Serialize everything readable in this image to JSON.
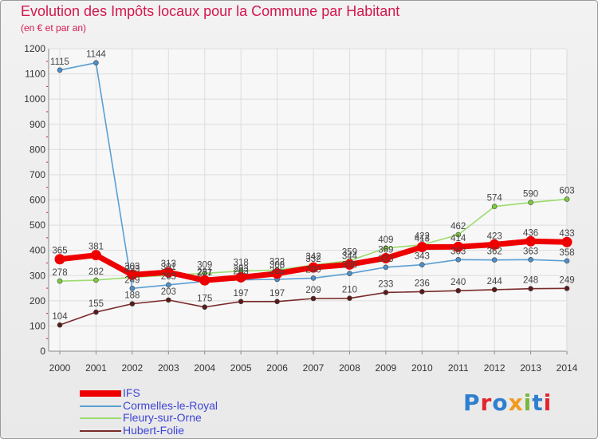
{
  "header": {
    "title": "Evolution des Impôts locaux pour la Commune par Habitant",
    "subtitle": "(en € et par an)"
  },
  "logo": {
    "text": "Proxiti",
    "colors": [
      "#2f7fcf",
      "#e1252f",
      "#2f7fcf",
      "#f39a1e",
      "#78b83a",
      "#2f7fcf",
      "#e1252f"
    ]
  },
  "chart_data": {
    "type": "line",
    "title": "Evolution des Impôts locaux pour la Commune par Habitant",
    "subtitle": "(en € et par an)",
    "xlabel": "",
    "ylabel": "",
    "ylim": [
      0,
      1200
    ],
    "yticks": [
      0,
      100,
      200,
      300,
      400,
      500,
      600,
      700,
      800,
      900,
      1000,
      1100,
      1200
    ],
    "grid": true,
    "legend_position": "bottom-left",
    "categories": [
      "2000",
      "2001",
      "2002",
      "2003",
      "2004",
      "2005",
      "2006",
      "2007",
      "2008",
      "2009",
      "2010",
      "2011",
      "2012",
      "2013",
      "2014"
    ],
    "series": [
      {
        "name": "Cormelles-le-Royal",
        "color": "#5a9fd4",
        "marker_color": "#4d8fc8",
        "values": [
          1115,
          1144,
          249,
          263,
          277,
          283,
          285,
          290,
          308,
          333,
          343,
          363,
          362,
          363,
          358
        ],
        "labels": [
          "1115",
          "1144",
          "249",
          "263",
          "277",
          "283",
          "285",
          "290",
          "308",
          "333",
          "343",
          "363",
          "362",
          "363",
          "358"
        ]
      },
      {
        "name": "Fleury-sur-Orne",
        "color": "#9cdc6e",
        "marker_color": "#7ccb3c",
        "values": [
          278,
          282,
          293,
          301,
          309,
          318,
          322,
          342,
          359,
          409,
          422,
          462,
          574,
          590,
          603
        ],
        "labels": [
          "278",
          "282",
          "293",
          "301",
          "309",
          "318",
          "322",
          "342",
          "359",
          "409",
          "422",
          "462",
          "574",
          "590",
          "603"
        ]
      },
      {
        "name": "Hubert-Folie",
        "color": "#7a2a2a",
        "marker_color": "#5a1a1a",
        "values": [
          104,
          155,
          188,
          203,
          175,
          197,
          197,
          209,
          210,
          233,
          236,
          240,
          244,
          248,
          249
        ],
        "labels": [
          "104",
          "155",
          "188",
          "203",
          "175",
          "197",
          "197",
          "209",
          "210",
          "233",
          "236",
          "240",
          "244",
          "248",
          "249"
        ]
      },
      {
        "name": "IFS",
        "color": "#ee0000",
        "marker_color": "#ee0000",
        "values": [
          365,
          381,
          303,
          313,
          281,
          293,
          308,
          332,
          344,
          369,
          413,
          414,
          423,
          436,
          433
        ],
        "labels": [
          "365",
          "381",
          "303",
          "313",
          "281",
          "293",
          "308",
          "332",
          "344",
          "369",
          "413",
          "414",
          "423",
          "436",
          "433"
        ]
      }
    ],
    "legend_order": [
      "IFS",
      "Cormelles-le-Royal",
      "Fleury-sur-Orne",
      "Hubert-Folie"
    ]
  }
}
